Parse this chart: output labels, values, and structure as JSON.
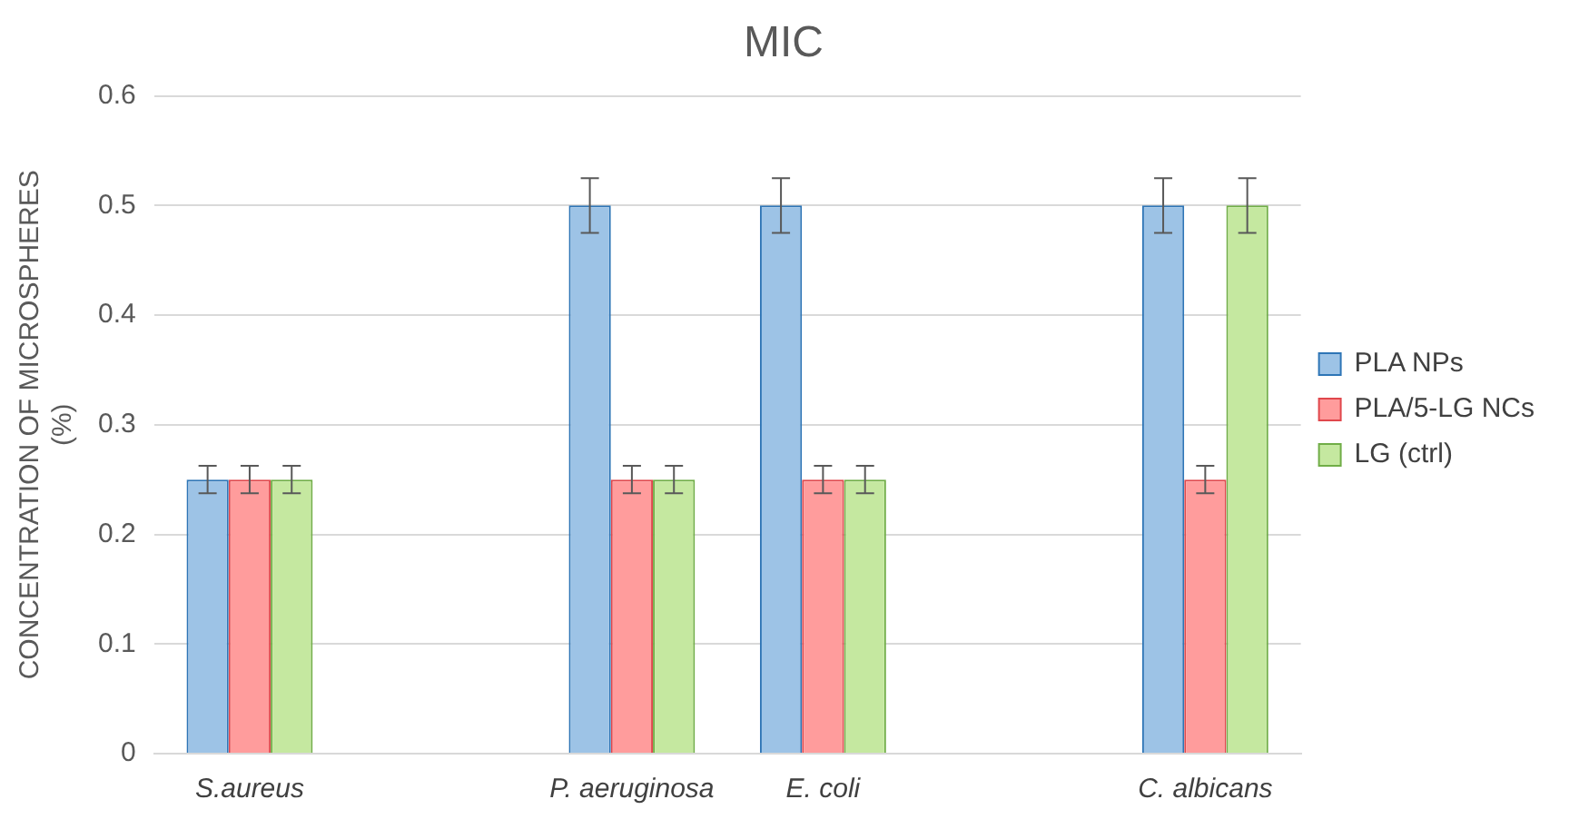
{
  "chart_data": {
    "type": "bar",
    "title": "MIC",
    "ylabel": "CONCENTRATION OF MICROSPHERES (%)",
    "categories": [
      "S.aureus",
      null,
      "P. aeruginosa",
      "E. coli",
      null,
      "C. albicans"
    ],
    "series": [
      {
        "name": "PLA NPs",
        "color": "#9dc3e6",
        "values": [
          0.25,
          null,
          0.5,
          0.5,
          null,
          0.5
        ],
        "errors": [
          0.0125,
          null,
          0.025,
          0.025,
          null,
          0.025
        ]
      },
      {
        "name": "PLA/5-LG NCs",
        "color": "#ff9c9c",
        "values": [
          0.25,
          null,
          0.25,
          0.25,
          null,
          0.25
        ],
        "errors": [
          0.0125,
          null,
          0.0125,
          0.0125,
          null,
          0.0125
        ]
      },
      {
        "name": "LG (ctrl)",
        "color": "#c5e8a0",
        "values": [
          0.25,
          null,
          0.25,
          0.25,
          null,
          0.5
        ],
        "errors": [
          0.0125,
          null,
          0.0125,
          0.0125,
          null,
          0.025
        ]
      }
    ],
    "ylim": [
      0,
      0.6
    ],
    "yticks": [
      0,
      0.1,
      0.2,
      0.3,
      0.4,
      0.5,
      0.6
    ],
    "grid": "y",
    "legend": "right"
  }
}
